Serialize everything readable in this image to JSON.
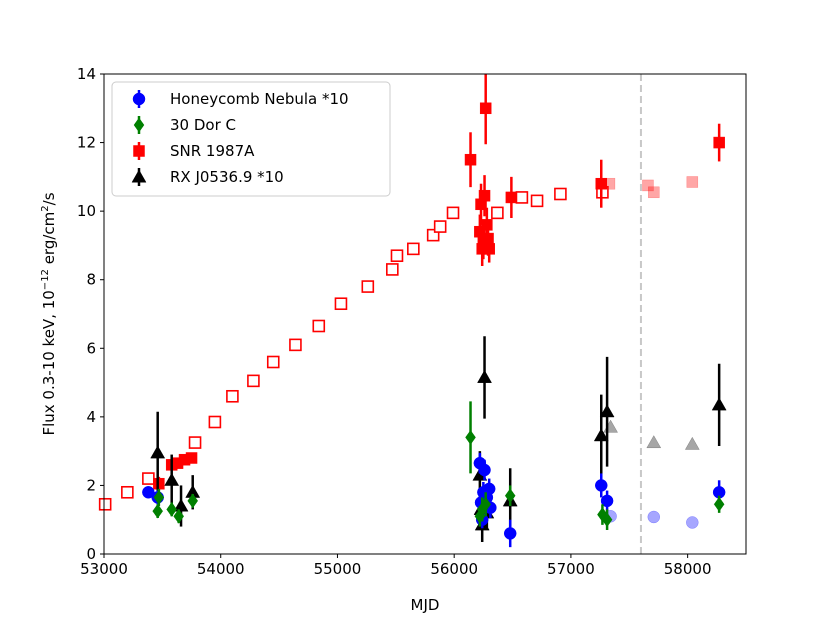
{
  "chart_data": {
    "type": "scatter",
    "title": "",
    "xlabel": "MJD",
    "ylabel_main": "Flux 0.3-10 keV, 10",
    "ylabel_exp": "−12",
    "ylabel_unit": " erg/cm",
    "ylabel_sq": "2",
    "ylabel_tail": "/s",
    "xlim": [
      53000,
      58500
    ],
    "ylim": [
      0,
      14
    ],
    "xticks": [
      53000,
      54000,
      55000,
      56000,
      57000,
      58000
    ],
    "xtick_labels": [
      "53000",
      "54000",
      "55000",
      "56000",
      "57000",
      "58000"
    ],
    "yticks": [
      0,
      2,
      4,
      6,
      8,
      10,
      12,
      14
    ],
    "ytick_labels": [
      "0",
      "2",
      "4",
      "6",
      "8",
      "10",
      "12",
      "14"
    ],
    "vline": {
      "x": 57600,
      "color": "#c8c8c8",
      "style": "dashed"
    },
    "legend_position": "upper-left",
    "series": [
      {
        "name": "Honeycomb Nebula *10",
        "color": "#0000ff",
        "marker": "circle",
        "points": [
          {
            "x": 53380,
            "y": 1.8,
            "e": 0.15
          },
          {
            "x": 53460,
            "y": 1.65,
            "e": 0.2
          },
          {
            "x": 56220,
            "y": 2.65,
            "e": 0.3
          },
          {
            "x": 56230,
            "y": 1.5,
            "e": 0.3
          },
          {
            "x": 56240,
            "y": 1.0,
            "e": 0.25
          },
          {
            "x": 56250,
            "y": 1.8,
            "e": 0.3
          },
          {
            "x": 56260,
            "y": 2.45,
            "e": 0.3
          },
          {
            "x": 56280,
            "y": 1.65,
            "e": 0.3
          },
          {
            "x": 56300,
            "y": 1.9,
            "e": 0.3
          },
          {
            "x": 56310,
            "y": 1.35,
            "e": 0.3
          },
          {
            "x": 56480,
            "y": 0.6,
            "e": 0.4
          },
          {
            "x": 57260,
            "y": 2.0,
            "e": 0.35
          },
          {
            "x": 57310,
            "y": 1.55,
            "e": 0.3
          },
          {
            "x": 58270,
            "y": 1.8,
            "e": 0.35
          }
        ],
        "faint_points": [
          {
            "x": 57340,
            "y": 1.1
          },
          {
            "x": 57710,
            "y": 1.08
          },
          {
            "x": 58040,
            "y": 0.92
          }
        ]
      },
      {
        "name": "30 Dor C",
        "color": "#008000",
        "marker": "diamond",
        "points": [
          {
            "x": 53460,
            "y": 1.25,
            "e": 0.2
          },
          {
            "x": 53470,
            "y": 1.65,
            "e": 0.25
          },
          {
            "x": 53580,
            "y": 1.3,
            "e": 0.2
          },
          {
            "x": 53640,
            "y": 1.1,
            "e": 0.2
          },
          {
            "x": 53760,
            "y": 1.55,
            "e": 0.2
          },
          {
            "x": 56140,
            "y": 3.4,
            "e": 1.05
          },
          {
            "x": 56220,
            "y": 1.1,
            "e": 0.3
          },
          {
            "x": 56240,
            "y": 1.3,
            "e": 0.35
          },
          {
            "x": 56270,
            "y": 1.45,
            "e": 0.35
          },
          {
            "x": 56480,
            "y": 1.7,
            "e": 0.3
          },
          {
            "x": 57270,
            "y": 1.15,
            "e": 0.3
          },
          {
            "x": 57310,
            "y": 1.0,
            "e": 0.3
          },
          {
            "x": 58270,
            "y": 1.45,
            "e": 0.25
          }
        ]
      },
      {
        "name": "SNR 1987A",
        "color": "#ff0000",
        "marker": "square",
        "points": [
          {
            "x": 53470,
            "y": 2.05,
            "e": 0.2
          },
          {
            "x": 53580,
            "y": 2.6,
            "e": 0.15
          },
          {
            "x": 53630,
            "y": 2.65,
            "e": 0.15
          },
          {
            "x": 53690,
            "y": 2.75,
            "e": 0.15
          },
          {
            "x": 53750,
            "y": 2.8,
            "e": 0.15
          },
          {
            "x": 56140,
            "y": 11.5,
            "e": 0.8
          },
          {
            "x": 56220,
            "y": 9.4,
            "e": 0.5
          },
          {
            "x": 56230,
            "y": 10.2,
            "e": 0.6
          },
          {
            "x": 56240,
            "y": 8.9,
            "e": 0.5
          },
          {
            "x": 56250,
            "y": 9.1,
            "e": 0.5
          },
          {
            "x": 56260,
            "y": 10.45,
            "e": 0.6
          },
          {
            "x": 56270,
            "y": 13.0,
            "e": 1.05
          },
          {
            "x": 56280,
            "y": 9.6,
            "e": 0.5
          },
          {
            "x": 56290,
            "y": 9.2,
            "e": 0.5
          },
          {
            "x": 56300,
            "y": 8.9,
            "e": 0.4
          },
          {
            "x": 56490,
            "y": 10.4,
            "e": 0.6
          },
          {
            "x": 57260,
            "y": 10.8,
            "e": 0.7
          },
          {
            "x": 58270,
            "y": 12.0,
            "e": 0.55
          }
        ],
        "open_points": [
          {
            "x": 53010,
            "y": 1.45
          },
          {
            "x": 53200,
            "y": 1.8
          },
          {
            "x": 53380,
            "y": 2.2
          },
          {
            "x": 53780,
            "y": 3.25
          },
          {
            "x": 53950,
            "y": 3.85
          },
          {
            "x": 54100,
            "y": 4.6
          },
          {
            "x": 54280,
            "y": 5.05
          },
          {
            "x": 54450,
            "y": 5.6
          },
          {
            "x": 54640,
            "y": 6.1
          },
          {
            "x": 54840,
            "y": 6.65
          },
          {
            "x": 55030,
            "y": 7.3
          },
          {
            "x": 55260,
            "y": 7.8
          },
          {
            "x": 55470,
            "y": 8.3
          },
          {
            "x": 55510,
            "y": 8.7
          },
          {
            "x": 55650,
            "y": 8.9
          },
          {
            "x": 55820,
            "y": 9.3
          },
          {
            "x": 55880,
            "y": 9.55
          },
          {
            "x": 55990,
            "y": 9.95
          },
          {
            "x": 56370,
            "y": 9.95
          },
          {
            "x": 56580,
            "y": 10.4
          },
          {
            "x": 56710,
            "y": 10.3
          },
          {
            "x": 56910,
            "y": 10.5
          },
          {
            "x": 57270,
            "y": 10.55
          }
        ],
        "faint_points": [
          {
            "x": 57330,
            "y": 10.8
          },
          {
            "x": 57660,
            "y": 10.75
          },
          {
            "x": 57710,
            "y": 10.55
          },
          {
            "x": 58040,
            "y": 10.85
          }
        ]
      },
      {
        "name": "RX J0536.9 *10",
        "color": "#000000",
        "marker": "triangle",
        "points": [
          {
            "x": 53460,
            "y": 2.95,
            "e": 1.2
          },
          {
            "x": 53580,
            "y": 2.15,
            "e": 0.75
          },
          {
            "x": 53660,
            "y": 1.4,
            "e": 0.6
          },
          {
            "x": 53760,
            "y": 1.8,
            "e": 0.5
          },
          {
            "x": 56220,
            "y": 2.3,
            "e": 0.7
          },
          {
            "x": 56230,
            "y": 1.3,
            "e": 0.5
          },
          {
            "x": 56240,
            "y": 0.85,
            "e": 0.5
          },
          {
            "x": 56260,
            "y": 5.15,
            "e": 1.2
          },
          {
            "x": 56280,
            "y": 1.2,
            "e": 0.5
          },
          {
            "x": 56480,
            "y": 1.55,
            "e": 0.95
          },
          {
            "x": 57260,
            "y": 3.45,
            "e": 1.2
          },
          {
            "x": 57310,
            "y": 4.15,
            "e": 1.6
          },
          {
            "x": 58270,
            "y": 4.35,
            "e": 1.2
          }
        ],
        "faint_points": [
          {
            "x": 57340,
            "y": 3.7
          },
          {
            "x": 57710,
            "y": 3.25
          },
          {
            "x": 58040,
            "y": 3.2
          }
        ]
      }
    ]
  }
}
